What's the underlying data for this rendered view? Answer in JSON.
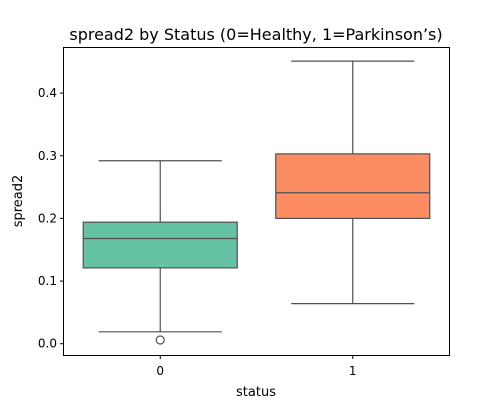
{
  "chart_data": {
    "type": "box",
    "title": "spread2 by Status (0=Healthy, 1=Parkinson’s)",
    "xlabel": "status",
    "ylabel": "spread2",
    "categories": [
      "0",
      "1"
    ],
    "ylim": [
      -0.018,
      0.472
    ],
    "yticks": [
      0.0,
      0.1,
      0.2,
      0.3,
      0.4
    ],
    "ytick_labels": [
      "0.0",
      "0.1",
      "0.2",
      "0.3",
      "0.4"
    ],
    "grid": false,
    "boxes": [
      {
        "category": "0",
        "color": "#66c2a5",
        "whisker_low": 0.019,
        "q1": 0.121,
        "median": 0.168,
        "q3": 0.194,
        "whisker_high": 0.292,
        "outliers": [
          0.006
        ]
      },
      {
        "category": "1",
        "color": "#fc8d62",
        "whisker_low": 0.064,
        "q1": 0.2,
        "median": 0.241,
        "q3": 0.303,
        "whisker_high": 0.451,
        "outliers": []
      }
    ]
  }
}
